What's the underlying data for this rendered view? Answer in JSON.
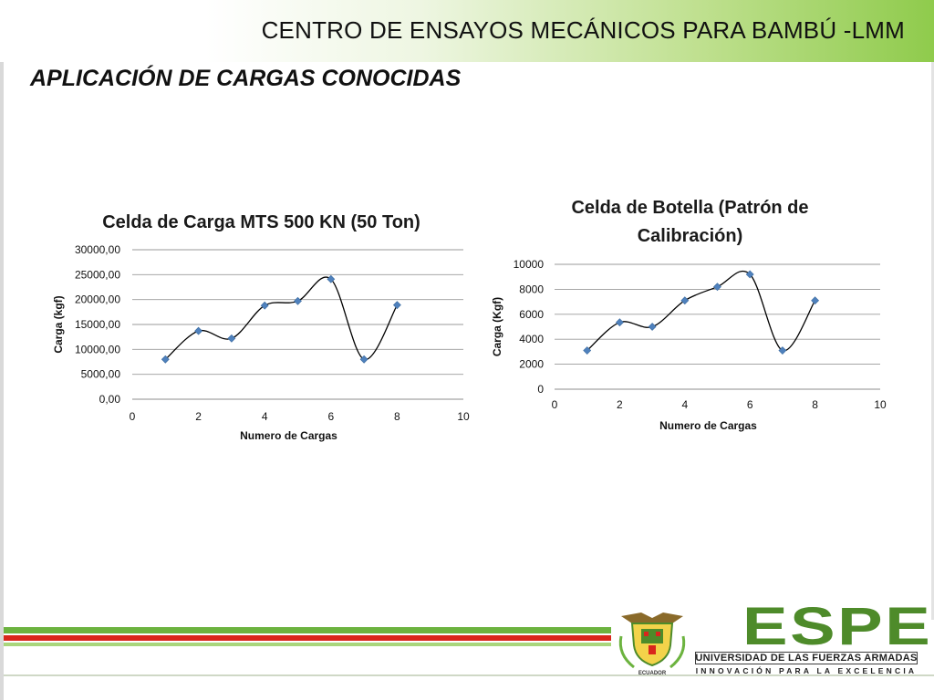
{
  "header": {
    "title": "CENTRO DE ENSAYOS MECÁNICOS PARA BAMBÚ -LMM",
    "subtitle": "APLICACIÓN DE CARGAS CONOCIDAS"
  },
  "colors": {
    "header_green": "#8fcb4c",
    "marker": "#4f81bd",
    "curve": "#000000",
    "footer_green": "#6cb33f",
    "footer_red": "#d9261c",
    "logo_green": "#4e8b2a"
  },
  "footer": {
    "logo": "ESPE",
    "university": "UNIVERSIDAD DE LAS FUERZAS ARMADAS",
    "motto": "INNOVACIÓN PARA LA EXCELENCIA",
    "crest_icon": "university-crest-icon",
    "crest_text": "ECUADOR"
  },
  "chart_data": [
    {
      "type": "scatter",
      "title": "Celda de Carga MTS 500 KN (50 Ton)",
      "xlabel": "Numero de Cargas",
      "ylabel": "Carga (kgf)",
      "xlim": [
        0,
        10
      ],
      "ylim": [
        0,
        30000
      ],
      "xticks": [
        0,
        2,
        4,
        6,
        8,
        10
      ],
      "yticks": [
        0,
        5000,
        10000,
        15000,
        20000,
        25000,
        30000
      ],
      "xtick_labels": [
        "0",
        "2",
        "4",
        "6",
        "8",
        "10"
      ],
      "ytick_labels": [
        "0,00",
        "5000,00",
        "10000,00",
        "15000,00",
        "20000,00",
        "25000,00",
        "30000,00"
      ],
      "grid": true,
      "smooth_line": true,
      "x": [
        1,
        2,
        3,
        4,
        5,
        6,
        7,
        8
      ],
      "y": [
        8000,
        13700,
        12200,
        18800,
        19700,
        24100,
        8000,
        18900
      ]
    },
    {
      "type": "scatter",
      "title": "Celda de Botella (Patrón de Calibración)",
      "xlabel": "Numero de Cargas",
      "ylabel": "Carga (Kgf)",
      "xlim": [
        0,
        10
      ],
      "ylim": [
        0,
        10000
      ],
      "xticks": [
        0,
        2,
        4,
        6,
        8,
        10
      ],
      "yticks": [
        0,
        2000,
        4000,
        6000,
        8000,
        10000
      ],
      "xtick_labels": [
        "0",
        "2",
        "4",
        "6",
        "8",
        "10"
      ],
      "ytick_labels": [
        "0",
        "2000",
        "4000",
        "6000",
        "8000",
        "10000"
      ],
      "grid": true,
      "smooth_line": true,
      "x": [
        1,
        2,
        3,
        4,
        5,
        6,
        7,
        8
      ],
      "y": [
        3100,
        5350,
        5000,
        7100,
        8200,
        9200,
        3100,
        7100
      ]
    }
  ]
}
